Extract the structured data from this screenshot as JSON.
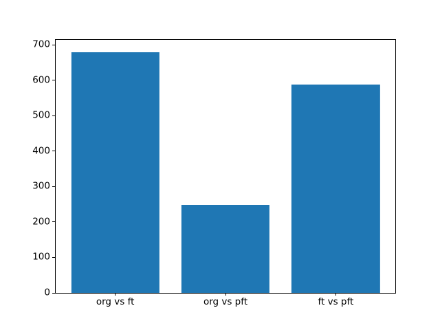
{
  "figure": {
    "background_color": "#ffffff"
  },
  "chart_data": {
    "type": "bar",
    "categories": [
      "org vs ft",
      "org vs pft",
      "ft vs pft"
    ],
    "values": [
      680,
      248,
      587
    ],
    "title": "",
    "xlabel": "",
    "ylabel": "",
    "ylim": [
      0,
      714
    ],
    "xlim": [
      -0.54,
      2.54
    ],
    "yticks": [
      0,
      100,
      200,
      300,
      400,
      500,
      600,
      700
    ],
    "bar_width_fraction": 0.8,
    "bar_color": "#1f77b4",
    "axis_color": "#000000",
    "grid": false,
    "legend": "none"
  }
}
